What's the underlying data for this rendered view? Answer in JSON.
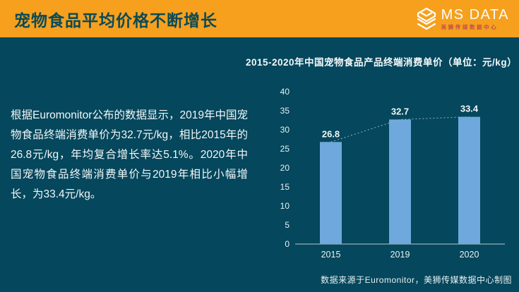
{
  "header": {
    "title": "宠物食品平均价格不断增长",
    "logo": {
      "name": "MS DATA",
      "subtitle": "美狮传媒数据中心"
    }
  },
  "body": {
    "paragraph": "根据Euromonitor公布的数据显示，2019年中国宠物食品终端消费单价为32.7元/kg，相比2015年的26.8元/kg，年均复合增长率达5.1%。2020年中国宠物食品终端消费单价与2019年相比小幅增长，为33.4元/kg。"
  },
  "chart_data": {
    "type": "bar",
    "title": "2015-2020年中国宠物食品产品终端消费单价（单位：元/kg）",
    "categories": [
      "2015",
      "2019",
      "2020"
    ],
    "values": [
      26.8,
      32.7,
      33.4
    ],
    "data_labels": [
      "26.8",
      "32.7",
      "33.4"
    ],
    "ylabel": "",
    "xlabel": "",
    "ylim": [
      0,
      40
    ],
    "ytick_step": 5,
    "grid": false,
    "legend": false,
    "bar_color": "#6FA8DC",
    "trendline": {
      "style": "dotted",
      "color": "#8FB6C8"
    },
    "axis_color": "#B7C9D1",
    "tick_label_color": "#E8F1F5",
    "data_label_color": "#F2F7F9"
  },
  "footer": {
    "source": "数据来源于Euromonitor，美狮传媒数据中心制图"
  },
  "colors": {
    "header_bg": "#F6A01E",
    "slide_bg": "#05475C",
    "header_title_text": "#0B4A56",
    "logo_subtitle": "#C0504D",
    "bar": "#6FA8DC"
  }
}
